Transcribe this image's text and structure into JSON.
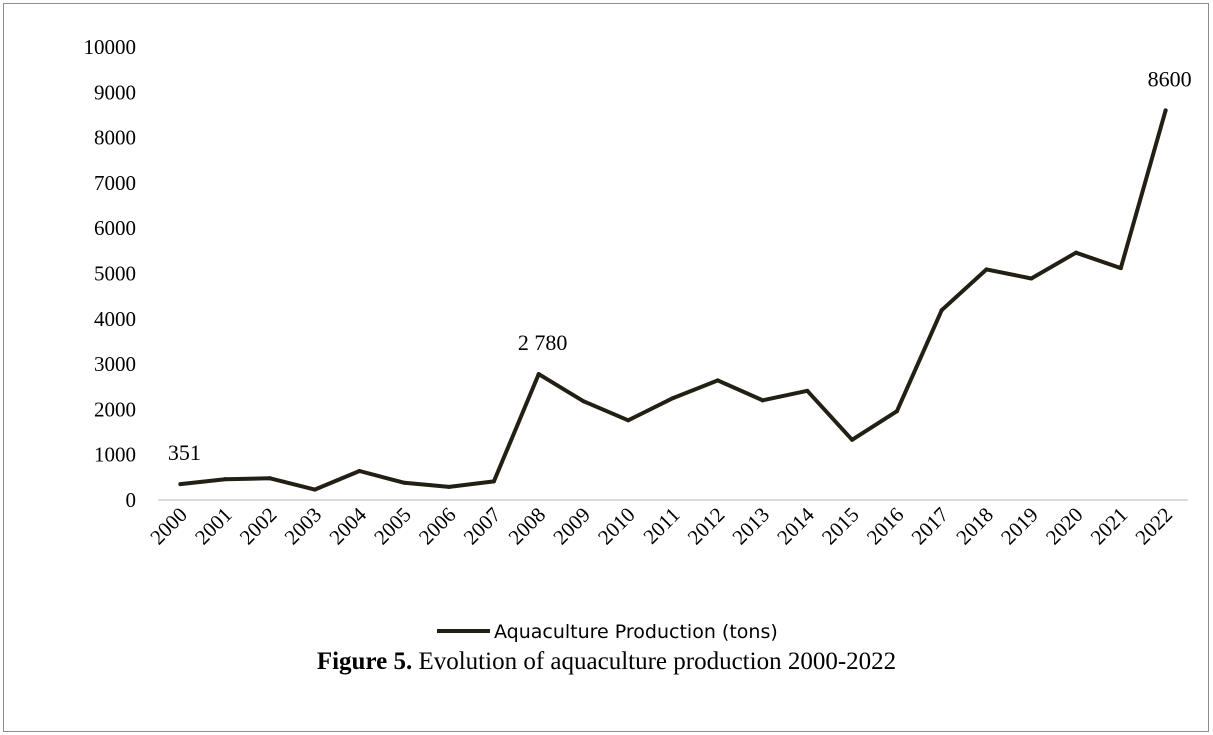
{
  "chart_data": {
    "type": "line",
    "categories": [
      "2000",
      "2001",
      "2002",
      "2003",
      "2004",
      "2005",
      "2006",
      "2007",
      "2008",
      "2009",
      "2010",
      "2011",
      "2012",
      "2013",
      "2014",
      "2015",
      "2016",
      "2017",
      "2018",
      "2019",
      "2020",
      "2021",
      "2022"
    ],
    "series": [
      {
        "name": "Aquaculture Production  (tons)",
        "values": [
          351,
          460,
          480,
          230,
          640,
          380,
          290,
          410,
          2780,
          2180,
          1760,
          2250,
          2640,
          2200,
          2410,
          1330,
          1960,
          4190,
          5090,
          4890,
          5460,
          5120,
          8600
        ],
        "color": "#231f14"
      }
    ],
    "ylim": [
      0,
      10000
    ],
    "yticks": [
      "0",
      "1000",
      "2000",
      "3000",
      "4000",
      "5000",
      "6000",
      "7000",
      "8000",
      "9000",
      "10000"
    ],
    "data_labels": [
      {
        "index": 0,
        "text": "351"
      },
      {
        "index": 8,
        "text": "2 780"
      },
      {
        "index": 22,
        "text": "8600"
      }
    ],
    "grid": false,
    "legend_position": "bottom"
  },
  "legend": {
    "label": "Aquaculture Production  (tons)"
  },
  "caption": {
    "bold": "Figure 5.",
    "text": " Evolution of aquaculture production 2000-2022"
  }
}
